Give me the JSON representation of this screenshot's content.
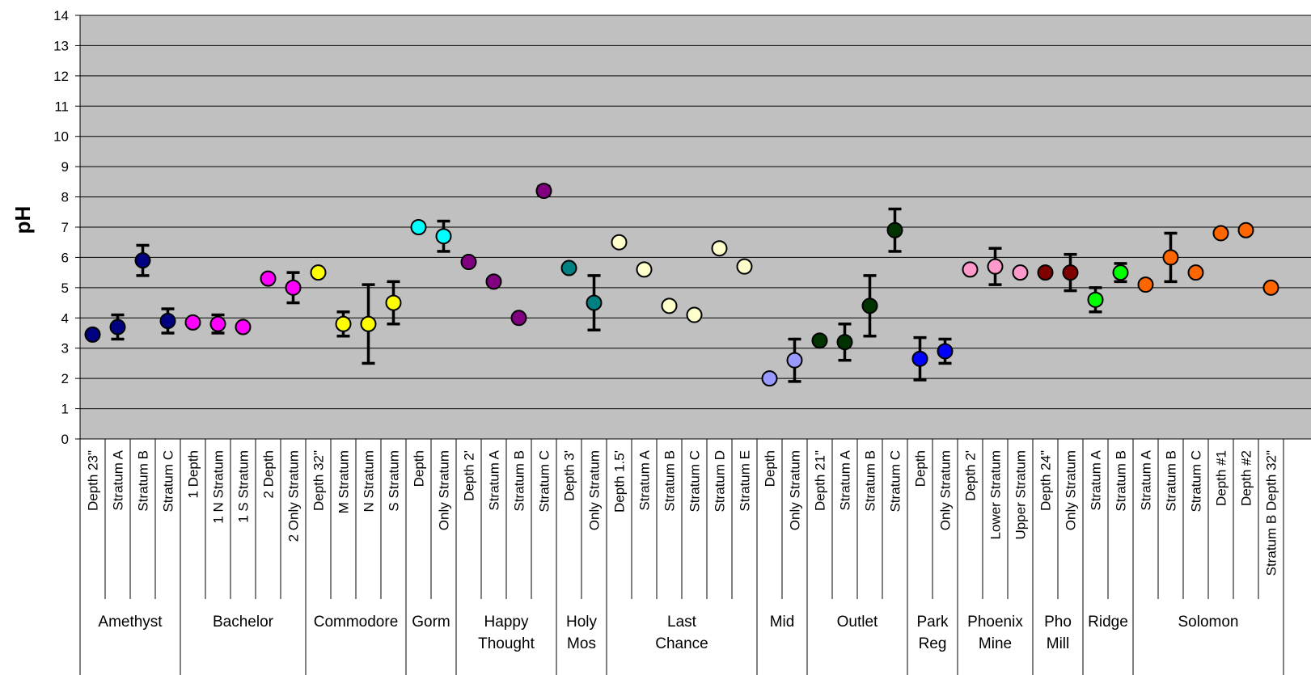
{
  "chart_data": {
    "type": "scatter",
    "ylabel": "pH",
    "xlabel": "",
    "ylim": [
      0,
      14
    ],
    "yticks": [
      "0",
      "1",
      "2",
      "3",
      "4",
      "5",
      "6",
      "7",
      "8",
      "9",
      "10",
      "11",
      "12",
      "13",
      "14"
    ],
    "grid": true,
    "legend": "none",
    "groups": [
      {
        "name": "Amethyst",
        "color": "#000080",
        "points": [
          {
            "label": "Depth 23\"",
            "y": 3.45
          },
          {
            "label": "Stratum A",
            "y": 3.7,
            "err": 0.4
          },
          {
            "label": "Stratum B",
            "y": 5.9,
            "err": 0.5
          },
          {
            "label": "Stratum C",
            "y": 3.9,
            "err": 0.4
          }
        ]
      },
      {
        "name": "Bachelor",
        "color": "#ff00ff",
        "points": [
          {
            "label": "1 Depth",
            "y": 3.85
          },
          {
            "label": "1 N Stratum",
            "y": 3.8,
            "err": 0.3
          },
          {
            "label": "1 S Stratum",
            "y": 3.7
          },
          {
            "label": "2 Depth",
            "y": 5.3
          },
          {
            "label": "2 Only Stratum",
            "y": 5.0,
            "err": 0.5
          }
        ]
      },
      {
        "name": "Commodore",
        "color": "#ffff00",
        "points": [
          {
            "label": "Depth 32\"",
            "y": 5.5
          },
          {
            "label": "M Stratum",
            "y": 3.8,
            "err": 0.4
          },
          {
            "label": "N Stratum",
            "y": 3.8,
            "err": 1.3
          },
          {
            "label": "S Stratum",
            "y": 4.5,
            "err": 0.7
          }
        ]
      },
      {
        "name": "Gorm",
        "color": "#00ffff",
        "points": [
          {
            "label": "Depth",
            "y": 7.0
          },
          {
            "label": "Only Stratum",
            "y": 6.7,
            "err": 0.5
          }
        ]
      },
      {
        "name": "Happy Thought",
        "color": "#800080",
        "points": [
          {
            "label": "Depth 2'",
            "y": 5.85
          },
          {
            "label": "Stratum A",
            "y": 5.2
          },
          {
            "label": "Stratum B",
            "y": 4.0
          },
          {
            "label": "Stratum C",
            "y": 8.2,
            "err": 0.15
          }
        ]
      },
      {
        "name": "Holy Mos",
        "color": "#008080",
        "points": [
          {
            "label": "Depth 3'",
            "y": 5.65
          },
          {
            "label": "Only Stratum",
            "y": 4.5,
            "err": 0.9
          }
        ]
      },
      {
        "name": "Last Chance",
        "color": "#ffffcc",
        "points": [
          {
            "label": "Depth 1.5'",
            "y": 6.5
          },
          {
            "label": "Stratum A",
            "y": 5.6
          },
          {
            "label": "Stratum B",
            "y": 4.4
          },
          {
            "label": "Stratum C",
            "y": 4.1
          },
          {
            "label": "Stratum D",
            "y": 6.3
          },
          {
            "label": "Stratum E",
            "y": 5.7
          }
        ]
      },
      {
        "name": "Mid",
        "color": "#9999ff",
        "points": [
          {
            "label": "Depth",
            "y": 2.0
          },
          {
            "label": "Only Stratum",
            "y": 2.6,
            "err": 0.7
          }
        ]
      },
      {
        "name": "Outlet",
        "color": "#003300",
        "points": [
          {
            "label": "Depth 21\"",
            "y": 3.25
          },
          {
            "label": "Stratum A",
            "y": 3.2,
            "err": 0.6
          },
          {
            "label": "Stratum B",
            "y": 4.4,
            "err": 1.0
          },
          {
            "label": "Stratum C",
            "y": 6.9,
            "err": 0.7
          }
        ]
      },
      {
        "name": "Park Reg",
        "color": "#0000ff",
        "points": [
          {
            "label": "Depth",
            "y": 2.65,
            "err": 0.7
          },
          {
            "label": "Only Stratum",
            "y": 2.9,
            "err": 0.4
          }
        ]
      },
      {
        "name": "Phoenix Mine",
        "color": "#ff99cc",
        "points": [
          {
            "label": "Depth 2'",
            "y": 5.6
          },
          {
            "label": "Lower Stratum",
            "y": 5.7,
            "err": 0.6
          },
          {
            "label": "Upper Stratum",
            "y": 5.5
          }
        ]
      },
      {
        "name": "Pho Mill",
        "color": "#800000",
        "points": [
          {
            "label": "Depth 24\"",
            "y": 5.5
          },
          {
            "label": "Only Stratum",
            "y": 5.5,
            "err": 0.6
          }
        ]
      },
      {
        "name": "Ridge",
        "color": "#00ff00",
        "points": [
          {
            "label": "Stratum A",
            "y": 4.6,
            "err": 0.4
          },
          {
            "label": "Stratum B",
            "y": 5.5,
            "err": 0.3
          }
        ]
      },
      {
        "name": "Solomon",
        "color": "#ff6600",
        "points": [
          {
            "label": "Stratum A",
            "y": 5.1
          },
          {
            "label": "Stratum B",
            "y": 6.0,
            "err": 0.8
          },
          {
            "label": "Stratum C",
            "y": 5.5
          },
          {
            "label": "Depth #1",
            "y": 6.8
          },
          {
            "label": "Depth #2",
            "y": 6.9
          },
          {
            "label": "Stratum B Depth 32\"",
            "y": 5.0
          }
        ]
      }
    ]
  }
}
